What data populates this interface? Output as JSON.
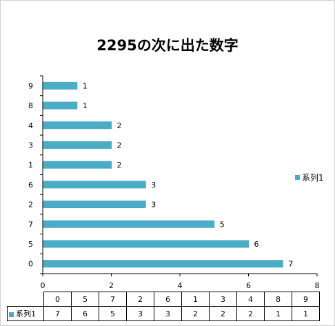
{
  "colors": {
    "bar": "#4bacc6",
    "axis": "#000000",
    "text": "#000000"
  },
  "chart_data": {
    "type": "bar",
    "orientation": "horizontal",
    "title": "2295の次に出た数字",
    "categories": [
      "0",
      "5",
      "7",
      "2",
      "6",
      "1",
      "3",
      "4",
      "8",
      "9"
    ],
    "series": [
      {
        "name": "系列1",
        "values": [
          7,
          6,
          5,
          3,
          3,
          2,
          2,
          2,
          1,
          1
        ]
      }
    ],
    "xlim": [
      0,
      8
    ],
    "x_ticks": [
      "0",
      "2",
      "4",
      "6",
      "8"
    ],
    "grid": false,
    "legend_position": "right",
    "data_labels": true,
    "data_table": true
  }
}
